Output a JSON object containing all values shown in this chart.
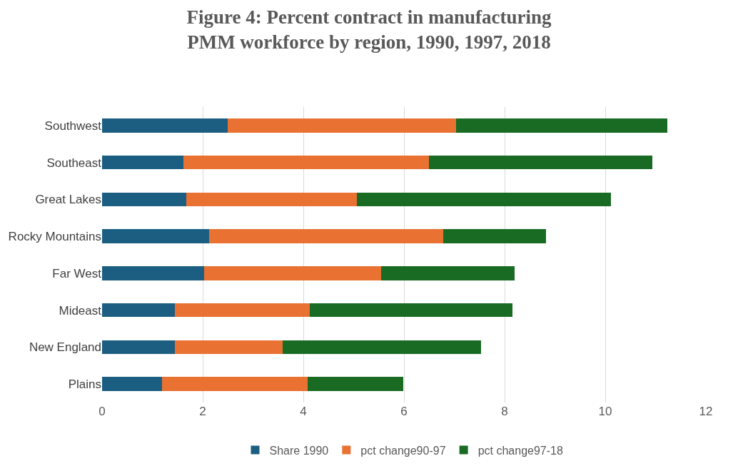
{
  "chart_data": {
    "type": "bar",
    "orientation": "horizontal",
    "stacked": true,
    "title": "Figure 4: Percent contract in manufacturing PMM workforce by region, 1990, 1997, 2018",
    "categories": [
      "Southwest",
      "Southeast",
      "Great Lakes",
      "Rocky Mountains",
      "Far West",
      "Mideast",
      "New England",
      "Plains"
    ],
    "series": [
      {
        "name": "Share 1990",
        "color": "#1b5e82",
        "values": [
          2.5,
          1.62,
          1.67,
          2.13,
          2.03,
          1.45,
          1.45,
          1.19
        ]
      },
      {
        "name": "pct change90-97",
        "color": "#e97132",
        "values": [
          4.54,
          4.87,
          3.39,
          4.65,
          3.52,
          2.68,
          2.14,
          2.89
        ]
      },
      {
        "name": "pct change97-18",
        "color": "#196b24",
        "values": [
          4.2,
          4.45,
          5.06,
          2.04,
          2.65,
          4.02,
          3.94,
          1.9
        ]
      }
    ],
    "xlim": [
      0,
      12
    ],
    "xticks": [
      0,
      2,
      4,
      6,
      8,
      10,
      12
    ],
    "grid": "x",
    "legend": "bottom"
  }
}
